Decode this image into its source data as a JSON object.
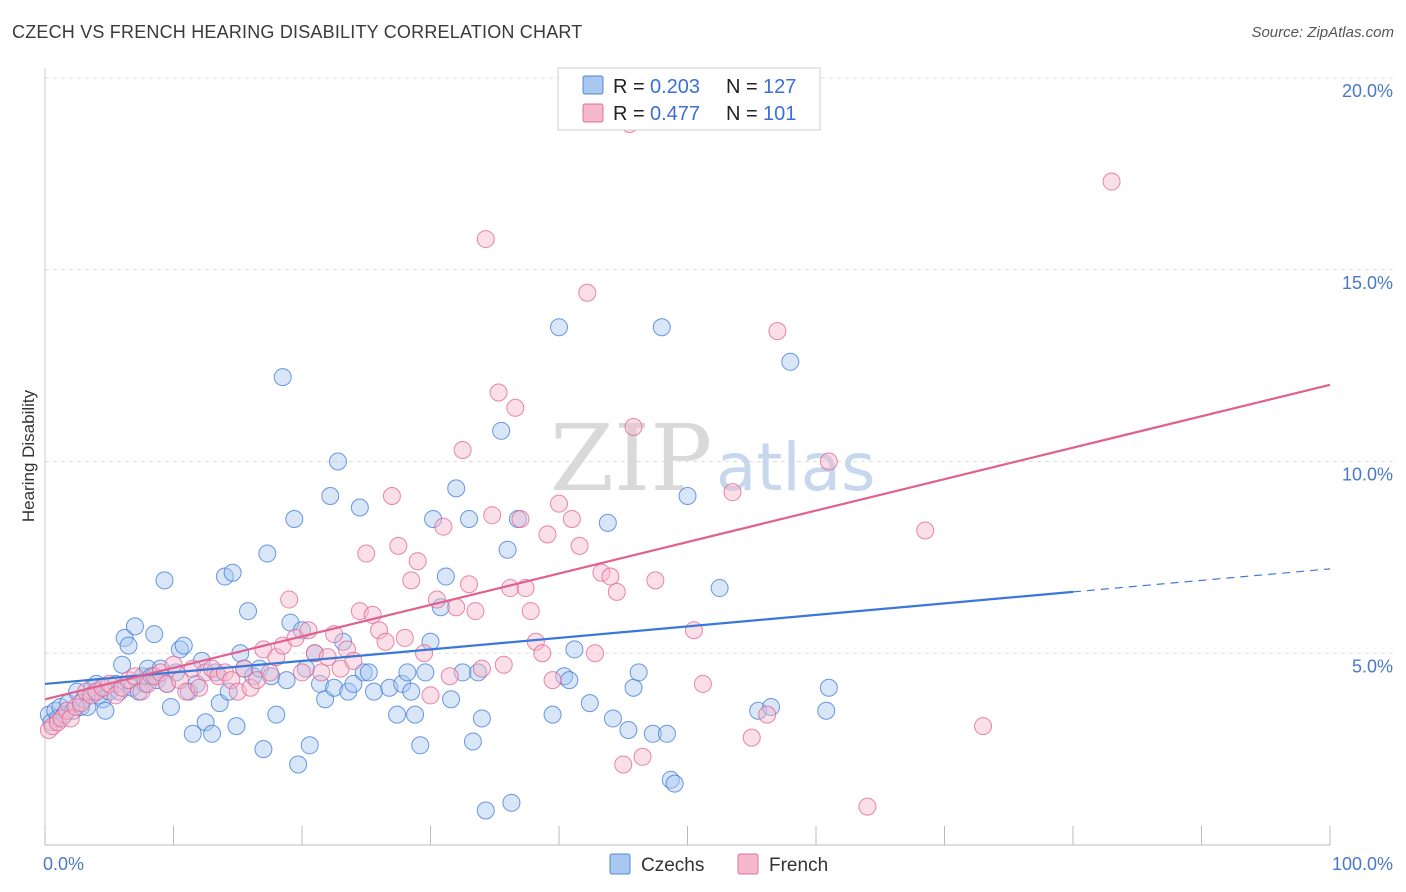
{
  "header": {
    "title": "CZECH VS FRENCH HEARING DISABILITY CORRELATION CHART",
    "source": "Source: ZipAtlas.com"
  },
  "legend": {
    "rows": [
      {
        "r_label": "R = ",
        "r_value": "0.203",
        "n_label": "N = ",
        "n_value": "127",
        "color": "#a9c8f0"
      },
      {
        "r_label": "R = ",
        "r_value": "0.477",
        "n_label": "N = ",
        "n_value": "101",
        "color": "#f6b8cb"
      }
    ]
  },
  "bottom_legend": [
    {
      "label": "Czechs",
      "color": "#a9c8f0"
    },
    {
      "label": "French",
      "color": "#f6b8cb"
    }
  ],
  "watermark": {
    "part1": "ZIP",
    "part2": "atlas"
  },
  "chart_data": {
    "type": "scatter",
    "xlabel": "",
    "ylabel": "Hearing Disability",
    "xlim": [
      0,
      100
    ],
    "ylim": [
      0,
      20
    ],
    "x_tick_labels": [
      {
        "value": 0,
        "label": "0.0%"
      },
      {
        "value": 100,
        "label": "100.0%"
      }
    ],
    "y_tick_labels": [
      {
        "value": 5,
        "label": "5.0%"
      },
      {
        "value": 10,
        "label": "10.0%"
      },
      {
        "value": 15,
        "label": "15.0%"
      },
      {
        "value": 20,
        "label": "20.0%"
      }
    ],
    "grid": true,
    "colors": {
      "czechs": "#3a78d8",
      "czechs_fill": "#a9c8f0",
      "french": "#e06090",
      "french_fill": "#f6b8cb"
    },
    "series": [
      {
        "name": "Czechs",
        "trend": {
          "x0": 0,
          "y0": 4.2,
          "x1": 80,
          "y1": 6.6,
          "dash_to_x": 100,
          "dash_to_y": 7.2
        },
        "points": [
          [
            0.3,
            3.4
          ],
          [
            0.5,
            3.2
          ],
          [
            0.8,
            3.5
          ],
          [
            1.0,
            3.3
          ],
          [
            1.2,
            3.6
          ],
          [
            1.5,
            3.4
          ],
          [
            1.8,
            3.7
          ],
          [
            2.2,
            3.5
          ],
          [
            2.5,
            4.0
          ],
          [
            2.8,
            3.6
          ],
          [
            3.0,
            3.8
          ],
          [
            3.3,
            3.6
          ],
          [
            3.7,
            4.1
          ],
          [
            4.0,
            4.2
          ],
          [
            4.2,
            3.9
          ],
          [
            4.5,
            3.8
          ],
          [
            4.7,
            3.5
          ],
          [
            5.0,
            4.0
          ],
          [
            5.5,
            4.2
          ],
          [
            5.8,
            4.0
          ],
          [
            6.0,
            4.7
          ],
          [
            6.2,
            5.4
          ],
          [
            6.5,
            5.2
          ],
          [
            6.8,
            4.1
          ],
          [
            7.0,
            5.7
          ],
          [
            7.3,
            4.0
          ],
          [
            7.6,
            4.4
          ],
          [
            7.8,
            4.2
          ],
          [
            8.0,
            4.6
          ],
          [
            8.3,
            4.4
          ],
          [
            8.5,
            5.5
          ],
          [
            8.7,
            4.3
          ],
          [
            9.0,
            4.6
          ],
          [
            9.3,
            6.9
          ],
          [
            9.5,
            4.2
          ],
          [
            9.8,
            3.6
          ],
          [
            10.2,
            4.5
          ],
          [
            10.5,
            5.1
          ],
          [
            10.8,
            5.2
          ],
          [
            11.2,
            4.0
          ],
          [
            11.5,
            2.9
          ],
          [
            11.8,
            4.2
          ],
          [
            12.2,
            4.8
          ],
          [
            12.5,
            3.2
          ],
          [
            13.0,
            2.9
          ],
          [
            13.3,
            4.5
          ],
          [
            13.6,
            3.7
          ],
          [
            14.0,
            7.0
          ],
          [
            14.3,
            4.0
          ],
          [
            14.6,
            7.1
          ],
          [
            14.9,
            3.1
          ],
          [
            15.2,
            5.0
          ],
          [
            15.5,
            4.6
          ],
          [
            15.8,
            6.1
          ],
          [
            16.2,
            4.4
          ],
          [
            16.7,
            4.6
          ],
          [
            17.0,
            2.5
          ],
          [
            17.3,
            7.6
          ],
          [
            17.6,
            4.4
          ],
          [
            18.0,
            3.4
          ],
          [
            18.5,
            12.2
          ],
          [
            18.8,
            4.3
          ],
          [
            19.1,
            5.8
          ],
          [
            19.4,
            8.5
          ],
          [
            19.7,
            2.1
          ],
          [
            20.0,
            5.6
          ],
          [
            20.3,
            4.6
          ],
          [
            20.6,
            2.6
          ],
          [
            21.0,
            5.0
          ],
          [
            21.4,
            4.2
          ],
          [
            21.8,
            3.8
          ],
          [
            22.2,
            9.1
          ],
          [
            22.5,
            4.1
          ],
          [
            22.8,
            10.0
          ],
          [
            23.2,
            5.3
          ],
          [
            23.6,
            4.0
          ],
          [
            24.0,
            4.2
          ],
          [
            24.5,
            8.8
          ],
          [
            24.8,
            4.5
          ],
          [
            25.2,
            4.5
          ],
          [
            25.6,
            4.0
          ],
          [
            26.8,
            4.1
          ],
          [
            27.4,
            3.4
          ],
          [
            27.8,
            4.2
          ],
          [
            28.2,
            4.5
          ],
          [
            28.5,
            4.0
          ],
          [
            28.8,
            3.4
          ],
          [
            29.2,
            2.6
          ],
          [
            29.6,
            4.5
          ],
          [
            30.0,
            5.3
          ],
          [
            30.2,
            8.5
          ],
          [
            30.8,
            6.2
          ],
          [
            31.2,
            7.0
          ],
          [
            31.6,
            3.8
          ],
          [
            32.0,
            9.3
          ],
          [
            32.5,
            4.5
          ],
          [
            33.0,
            8.5
          ],
          [
            33.3,
            2.7
          ],
          [
            33.7,
            4.5
          ],
          [
            34.0,
            3.3
          ],
          [
            34.3,
            0.9
          ],
          [
            35.5,
            10.8
          ],
          [
            36.0,
            7.7
          ],
          [
            36.3,
            1.1
          ],
          [
            36.8,
            8.5
          ],
          [
            39.5,
            3.4
          ],
          [
            40.0,
            13.5
          ],
          [
            40.4,
            4.4
          ],
          [
            40.8,
            4.3
          ],
          [
            41.2,
            5.1
          ],
          [
            42.4,
            3.7
          ],
          [
            43.8,
            8.4
          ],
          [
            44.2,
            3.3
          ],
          [
            45.4,
            3.0
          ],
          [
            45.8,
            4.1
          ],
          [
            46.2,
            4.5
          ],
          [
            47.3,
            2.9
          ],
          [
            48.0,
            13.5
          ],
          [
            48.4,
            2.9
          ],
          [
            48.7,
            1.7
          ],
          [
            49.0,
            1.6
          ],
          [
            50.0,
            9.1
          ],
          [
            52.5,
            6.7
          ],
          [
            55.5,
            3.5
          ],
          [
            56.5,
            3.6
          ],
          [
            58.0,
            12.6
          ],
          [
            60.8,
            3.5
          ],
          [
            61.0,
            4.1
          ]
        ]
      },
      {
        "name": "French",
        "trend": {
          "x0": 0,
          "y0": 3.8,
          "x1": 100,
          "y1": 12.0
        },
        "points": [
          [
            0.3,
            3.0
          ],
          [
            0.6,
            3.1
          ],
          [
            1.0,
            3.2
          ],
          [
            1.3,
            3.3
          ],
          [
            1.7,
            3.5
          ],
          [
            2.0,
            3.3
          ],
          [
            2.4,
            3.6
          ],
          [
            2.8,
            3.7
          ],
          [
            3.2,
            4.0
          ],
          [
            3.6,
            3.9
          ],
          [
            4.0,
            4.0
          ],
          [
            4.5,
            4.1
          ],
          [
            5.0,
            4.2
          ],
          [
            5.5,
            3.9
          ],
          [
            6.0,
            4.1
          ],
          [
            6.5,
            4.3
          ],
          [
            7.0,
            4.4
          ],
          [
            7.5,
            4.0
          ],
          [
            8.0,
            4.2
          ],
          [
            8.5,
            4.4
          ],
          [
            9.0,
            4.5
          ],
          [
            9.5,
            4.2
          ],
          [
            10.0,
            4.7
          ],
          [
            10.5,
            4.3
          ],
          [
            11.0,
            4.0
          ],
          [
            11.5,
            4.6
          ],
          [
            12.0,
            4.1
          ],
          [
            12.5,
            4.5
          ],
          [
            13.0,
            4.6
          ],
          [
            13.5,
            4.4
          ],
          [
            14.0,
            4.5
          ],
          [
            14.5,
            4.3
          ],
          [
            15.0,
            4.0
          ],
          [
            15.5,
            4.6
          ],
          [
            16.0,
            4.1
          ],
          [
            16.5,
            4.3
          ],
          [
            17.0,
            5.1
          ],
          [
            17.5,
            4.5
          ],
          [
            18.0,
            4.9
          ],
          [
            18.5,
            5.2
          ],
          [
            19.0,
            6.4
          ],
          [
            19.5,
            5.4
          ],
          [
            20.0,
            4.5
          ],
          [
            20.5,
            5.6
          ],
          [
            21.0,
            5.0
          ],
          [
            21.5,
            4.5
          ],
          [
            22.0,
            4.9
          ],
          [
            22.5,
            5.5
          ],
          [
            23.0,
            4.6
          ],
          [
            23.5,
            5.1
          ],
          [
            24.0,
            4.8
          ],
          [
            24.5,
            6.1
          ],
          [
            25.0,
            7.6
          ],
          [
            25.5,
            6.0
          ],
          [
            26.0,
            5.6
          ],
          [
            26.5,
            5.3
          ],
          [
            27.0,
            9.1
          ],
          [
            27.5,
            7.8
          ],
          [
            28.0,
            5.4
          ],
          [
            28.5,
            6.9
          ],
          [
            29.0,
            7.4
          ],
          [
            29.5,
            5.0
          ],
          [
            30.0,
            3.9
          ],
          [
            30.5,
            6.4
          ],
          [
            31.0,
            8.3
          ],
          [
            31.5,
            4.4
          ],
          [
            32.0,
            6.2
          ],
          [
            32.5,
            10.3
          ],
          [
            33.0,
            6.8
          ],
          [
            33.5,
            6.1
          ],
          [
            34.0,
            4.6
          ],
          [
            34.3,
            15.8
          ],
          [
            34.8,
            8.6
          ],
          [
            35.3,
            11.8
          ],
          [
            35.7,
            4.7
          ],
          [
            36.2,
            6.7
          ],
          [
            36.6,
            11.4
          ],
          [
            37.0,
            8.5
          ],
          [
            37.4,
            6.7
          ],
          [
            37.8,
            6.1
          ],
          [
            38.2,
            5.3
          ],
          [
            38.7,
            5.0
          ],
          [
            39.1,
            8.1
          ],
          [
            39.5,
            4.3
          ],
          [
            40.0,
            8.9
          ],
          [
            41.0,
            8.5
          ],
          [
            41.6,
            7.8
          ],
          [
            42.2,
            14.4
          ],
          [
            42.8,
            5.0
          ],
          [
            43.3,
            7.1
          ],
          [
            44.0,
            7.0
          ],
          [
            44.5,
            6.6
          ],
          [
            45.0,
            2.1
          ],
          [
            45.5,
            18.8
          ],
          [
            45.8,
            10.9
          ],
          [
            46.5,
            2.3
          ],
          [
            47.5,
            6.9
          ],
          [
            50.5,
            5.6
          ],
          [
            51.2,
            4.2
          ],
          [
            53.5,
            9.2
          ],
          [
            55.0,
            2.8
          ],
          [
            56.2,
            3.4
          ],
          [
            57.0,
            13.4
          ],
          [
            61.0,
            10.0
          ],
          [
            64.0,
            1.0
          ],
          [
            68.5,
            8.2
          ],
          [
            73.0,
            3.1
          ],
          [
            83.0,
            17.3
          ]
        ]
      }
    ]
  }
}
